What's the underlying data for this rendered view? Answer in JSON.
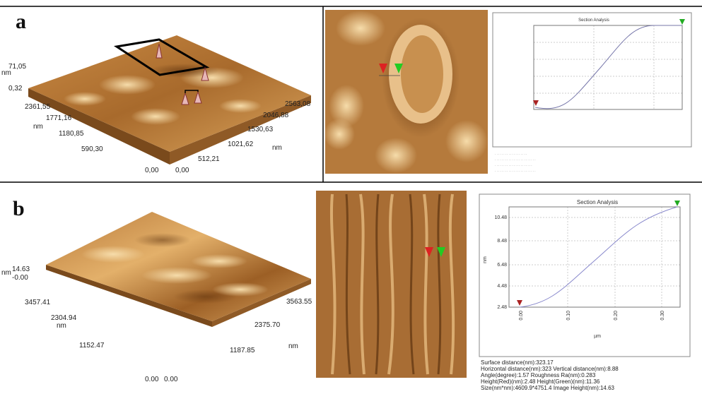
{
  "panels": [
    {
      "label": "a",
      "surface_labels": [
        "71,05",
        "nm",
        "0,32",
        "2361,55",
        "1771,16",
        "nm",
        "1180,85",
        "590,30",
        "0,00",
        "0,00",
        "512,21",
        "1021,62",
        "1530,63",
        "2046,88",
        "2563,08",
        "nm"
      ],
      "section": {
        "title": "Section Analysis"
      }
    },
    {
      "label": "b",
      "surface_labels": [
        "nm",
        "14.63",
        "-0.00",
        "3457.41",
        "2304.94",
        "nm",
        "1152.47",
        "0.00",
        "0.00",
        "1187.85",
        "2375.70",
        "3563.55",
        "nm"
      ],
      "section": {
        "title": "Section Analysis",
        "y_label": "nm",
        "x_label": "µm",
        "yticks": [
          "10.48",
          "8.48",
          "6.48",
          "4.48",
          "2.48"
        ],
        "xticks": [
          "0.00",
          "0.10",
          "0.20",
          "0.30"
        ],
        "stats": [
          "Surface distance(nm):323.17",
          "Horizontal distance(nm):323   Vertical distance(nm):8.88",
          "Angle(degree):1.57        Roughness Ra(nm):0.283",
          "Height(Red)(nm):2.48           Height(Green)(nm):11.36",
          "Size(nm*nm):4609.9*4751.4    Image Height(nm):14.63"
        ]
      }
    }
  ]
}
